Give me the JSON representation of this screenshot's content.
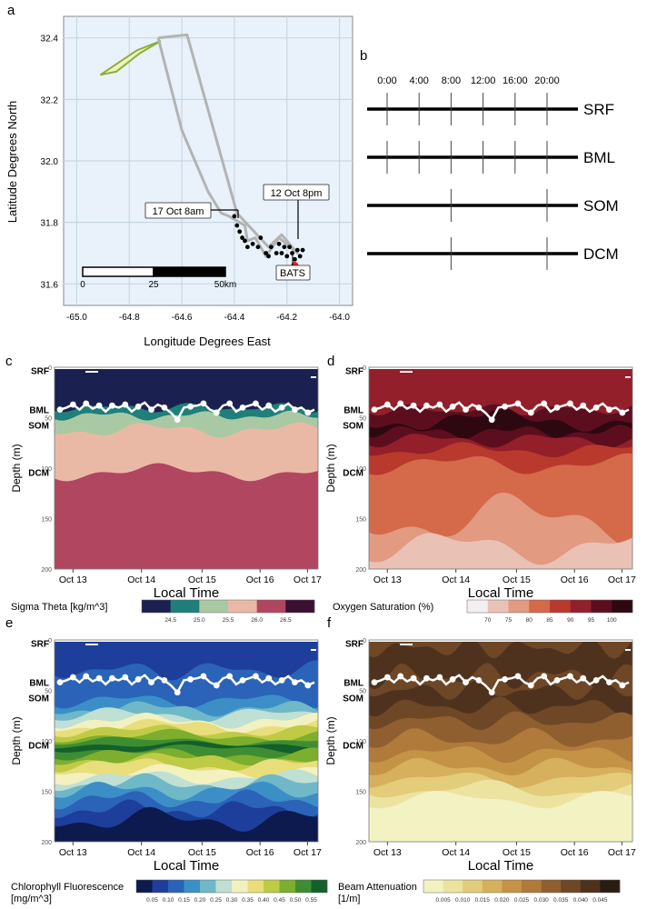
{
  "panel_letters": {
    "a": "a",
    "b": "b",
    "c": "c",
    "d": "d",
    "e": "e",
    "f": "f"
  },
  "chart_data": [
    {
      "panel": "a",
      "type": "map",
      "xlabel": "Longitude Degrees East",
      "ylabel": "Latitude Degrees North",
      "xlim": [
        -65.05,
        -63.95
      ],
      "ylim": [
        31.53,
        32.47
      ],
      "x_ticks": [
        -65.0,
        -64.8,
        -64.6,
        -64.4,
        -64.2,
        -64.0
      ],
      "x_tick_labels": [
        "-65.0",
        "-64.8",
        "-64.6",
        "-64.4",
        "-64.2",
        "-64.0"
      ],
      "y_ticks": [
        31.6,
        31.8,
        32.0,
        32.2,
        32.4
      ],
      "y_tick_labels": [
        "31.6",
        "31.8",
        "32.0",
        "32.2",
        "32.4"
      ],
      "colors": {
        "background": "#e9f2fb",
        "grid": "#c8d6e3",
        "track": "#b3b3b3",
        "polygon_fill": "#f2f2c0",
        "polygon_edge": "#8ab13a",
        "station": "#000000",
        "bats": "#e8202a"
      },
      "track": [
        [
          -64.69,
          32.4
        ],
        [
          -64.58,
          32.41
        ],
        [
          -64.39,
          31.83
        ],
        [
          -64.27,
          31.72
        ],
        [
          -64.22,
          31.76
        ],
        [
          -64.16,
          31.7
        ],
        [
          -64.23,
          31.75
        ],
        [
          -64.28,
          31.69
        ],
        [
          -64.32,
          31.75
        ],
        [
          -64.35,
          31.74
        ],
        [
          -64.36,
          31.79
        ],
        [
          -64.42,
          31.82
        ],
        [
          -64.45,
          31.83
        ],
        [
          -64.5,
          31.9
        ],
        [
          -64.6,
          32.1
        ],
        [
          -64.69,
          32.4
        ]
      ],
      "survey_polygon": [
        [
          -64.91,
          32.28
        ],
        [
          -64.77,
          32.36
        ],
        [
          -64.68,
          32.39
        ],
        [
          -64.76,
          32.35
        ],
        [
          -64.85,
          32.29
        ],
        [
          -64.91,
          32.28
        ]
      ],
      "stations": [
        [
          -64.4,
          31.82
        ],
        [
          -64.39,
          31.79
        ],
        [
          -64.38,
          31.77
        ],
        [
          -64.37,
          31.75
        ],
        [
          -64.36,
          31.74
        ],
        [
          -64.35,
          31.72
        ],
        [
          -64.33,
          31.73
        ],
        [
          -64.31,
          31.72
        ],
        [
          -64.3,
          31.75
        ],
        [
          -64.28,
          31.7
        ],
        [
          -64.27,
          31.69
        ],
        [
          -64.26,
          31.72
        ],
        [
          -64.24,
          31.7
        ],
        [
          -64.23,
          31.73
        ],
        [
          -64.22,
          31.7
        ],
        [
          -64.21,
          31.72
        ],
        [
          -64.2,
          31.69
        ],
        [
          -64.19,
          31.72
        ],
        [
          -64.18,
          31.7
        ],
        [
          -64.17,
          31.68
        ],
        [
          -64.16,
          31.71
        ],
        [
          -64.15,
          31.69
        ],
        [
          -64.14,
          31.71
        ]
      ],
      "bats_point": [
        -64.17,
        31.66
      ],
      "annotations": [
        {
          "text": "17 Oct 8am",
          "at": [
            -64.4,
            31.82
          ]
        },
        {
          "text": "12 Oct 8pm",
          "at": [
            -64.16,
            31.71
          ]
        },
        {
          "text": "BATS",
          "at": [
            -64.17,
            31.66
          ]
        }
      ],
      "scale_bar": {
        "labels": [
          "0",
          "25",
          "50km"
        ]
      }
    },
    {
      "panel": "b",
      "type": "timeline",
      "time_labels": [
        "0:00",
        "4:00",
        "8:00",
        "12:00",
        "16:00",
        "20:00"
      ],
      "time_values": [
        0,
        4,
        8,
        12,
        16,
        20
      ],
      "rows": [
        {
          "label": "SRF",
          "sample_times": [
            0,
            4,
            8,
            12,
            16,
            20
          ]
        },
        {
          "label": "BML",
          "sample_times": [
            0,
            4,
            8,
            12,
            16,
            20
          ]
        },
        {
          "label": "SOM",
          "sample_times": [
            8,
            20
          ]
        },
        {
          "label": "DCM",
          "sample_times": [
            8,
            20
          ]
        }
      ]
    },
    {
      "panel": "c",
      "type": "heatmap",
      "ylabel": "Depth (m)",
      "xlabel": "Local Time",
      "x_tick_labels": [
        "Oct 13",
        "Oct 14",
        "Oct 15",
        "Oct 16",
        "Oct 17"
      ],
      "y_tick_labels": [
        "0",
        "50",
        "100",
        "150",
        "200"
      ],
      "layer_labels": [
        "SRF",
        "BML",
        "SOM",
        "DCM"
      ],
      "colorbar_label": "Sigma Theta [kg/m^3]",
      "colorbar_tick_labels": [
        "24.5",
        "25.0",
        "25.5",
        "26.0",
        "26.5"
      ],
      "colors": [
        "#1a2150",
        "#1f7f7a",
        "#a9c9a4",
        "#eab9a5",
        "#b0465f",
        "#3a1033"
      ]
    },
    {
      "panel": "d",
      "type": "heatmap",
      "ylabel": "Depth (m)",
      "xlabel": "Local Time",
      "x_tick_labels": [
        "Oct 13",
        "Oct 14",
        "Oct 15",
        "Oct 16",
        "Oct 17"
      ],
      "y_tick_labels": [
        "0",
        "50",
        "100",
        "150",
        "200"
      ],
      "layer_labels": [
        "SRF",
        "BML",
        "SOM",
        "DCM"
      ],
      "colorbar_label": "Oxygen Saturation (%)",
      "colorbar_tick_labels": [
        "70",
        "75",
        "80",
        "85",
        "90",
        "95",
        "100"
      ],
      "colors": [
        "#f3efef",
        "#e9c2b5",
        "#e29a80",
        "#d46a4a",
        "#b93a2d",
        "#931f2a",
        "#5c0e1f",
        "#2e0810"
      ]
    },
    {
      "panel": "e",
      "type": "heatmap",
      "ylabel": "Depth (m)",
      "xlabel": "Local Time",
      "x_tick_labels": [
        "Oct 13",
        "Oct 14",
        "Oct 15",
        "Oct 16",
        "Oct 17"
      ],
      "y_tick_labels": [
        "0",
        "50",
        "100",
        "150",
        "200"
      ],
      "layer_labels": [
        "SRF",
        "BML",
        "SOM",
        "DCM"
      ],
      "colorbar_label": "Chlorophyll Fluorescence [mg/m^3]",
      "colorbar_tick_labels": [
        "0.05",
        "0.10",
        "0.15",
        "0.20",
        "0.25",
        "0.30",
        "0.35",
        "0.40",
        "0.45",
        "0.50",
        "0.55"
      ],
      "colors": [
        "#0c1a4e",
        "#1d3e9a",
        "#2a63b8",
        "#3c8fc6",
        "#6fb8c8",
        "#bfe0d2",
        "#f3f1bf",
        "#e8de7c",
        "#bfcb45",
        "#7dae2e",
        "#3f8d32",
        "#14602a"
      ]
    },
    {
      "panel": "f",
      "type": "heatmap",
      "ylabel": "Depth (m)",
      "xlabel": "Local Time",
      "x_tick_labels": [
        "Oct 13",
        "Oct 14",
        "Oct 15",
        "Oct 16",
        "Oct 17"
      ],
      "y_tick_labels": [
        "0",
        "50",
        "100",
        "150",
        "200"
      ],
      "layer_labels": [
        "SRF",
        "BML",
        "SOM",
        "DCM"
      ],
      "colorbar_label": "Beam Attenuation [1/m]",
      "colorbar_tick_labels": [
        "0.005",
        "0.010",
        "0.015",
        "0.020",
        "0.025",
        "0.030",
        "0.035",
        "0.040",
        "0.045"
      ],
      "colors": [
        "#f3f2c2",
        "#ece3a0",
        "#e3cc7a",
        "#d6b05c",
        "#c59346",
        "#b07a3a",
        "#8f5f30",
        "#6e4726",
        "#4f321d",
        "#2b1c12"
      ]
    }
  ]
}
